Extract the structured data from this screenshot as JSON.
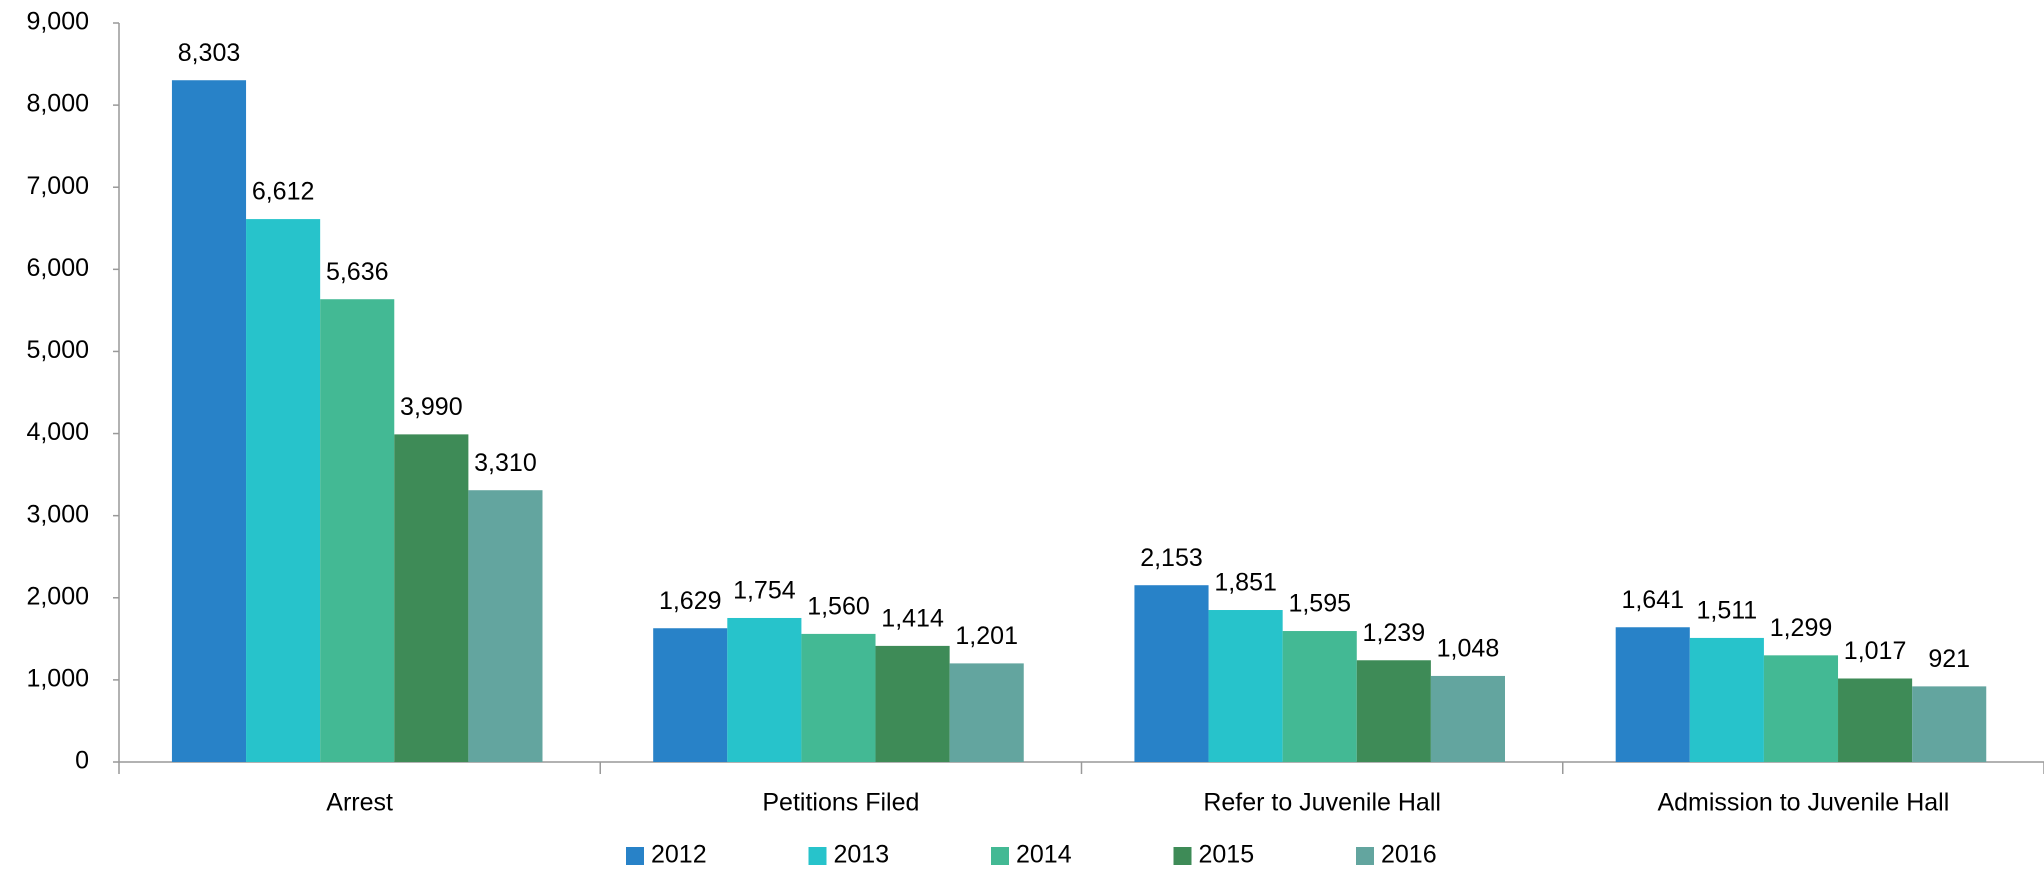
{
  "chart_data": {
    "type": "bar",
    "categories": [
      "Arrest",
      "Petitions Filed",
      "Refer to Juvenile Hall",
      "Admission to Juvenile Hall"
    ],
    "series": [
      {
        "name": "2012",
        "color": "#2882c8",
        "values": [
          8303,
          1629,
          2153,
          1641
        ],
        "value_labels": [
          "8,303",
          "1,629",
          "2,153",
          "1,641"
        ]
      },
      {
        "name": "2013",
        "color": "#27c3cb",
        "values": [
          6612,
          1754,
          1851,
          1511
        ],
        "value_labels": [
          "6,612",
          "1,754",
          "1,851",
          "1,511"
        ]
      },
      {
        "name": "2014",
        "color": "#43b994",
        "values": [
          5636,
          1560,
          1595,
          1299
        ],
        "value_labels": [
          "5,636",
          "1,560",
          "1,595",
          "1,299"
        ]
      },
      {
        "name": "2015",
        "color": "#3e8b57",
        "values": [
          3990,
          1414,
          1239,
          1017
        ],
        "value_labels": [
          "3,990",
          "1,414",
          "1,239",
          "1,017"
        ]
      },
      {
        "name": "2016",
        "color": "#63a59f",
        "values": [
          3310,
          1201,
          1048,
          921
        ],
        "value_labels": [
          "3,310",
          "1,201",
          "1,048",
          "921"
        ]
      }
    ],
    "ylim": [
      0,
      9000
    ],
    "yticks": [
      0,
      {
        "value": 1000,
        "label": "1,000"
      },
      {
        "value": 2000,
        "label": "2,000"
      },
      {
        "value": 3000,
        "label": "3,000"
      },
      {
        "value": 4000,
        "label": "4,000"
      },
      {
        "value": 5000,
        "label": "5,000"
      },
      {
        "value": 6000,
        "label": "6,000"
      },
      {
        "value": 7000,
        "label": "7,000"
      },
      {
        "value": 8000,
        "label": "8,000"
      },
      {
        "value": 9000,
        "label": "9,000"
      }
    ],
    "grid": false,
    "legend": "bottom"
  }
}
